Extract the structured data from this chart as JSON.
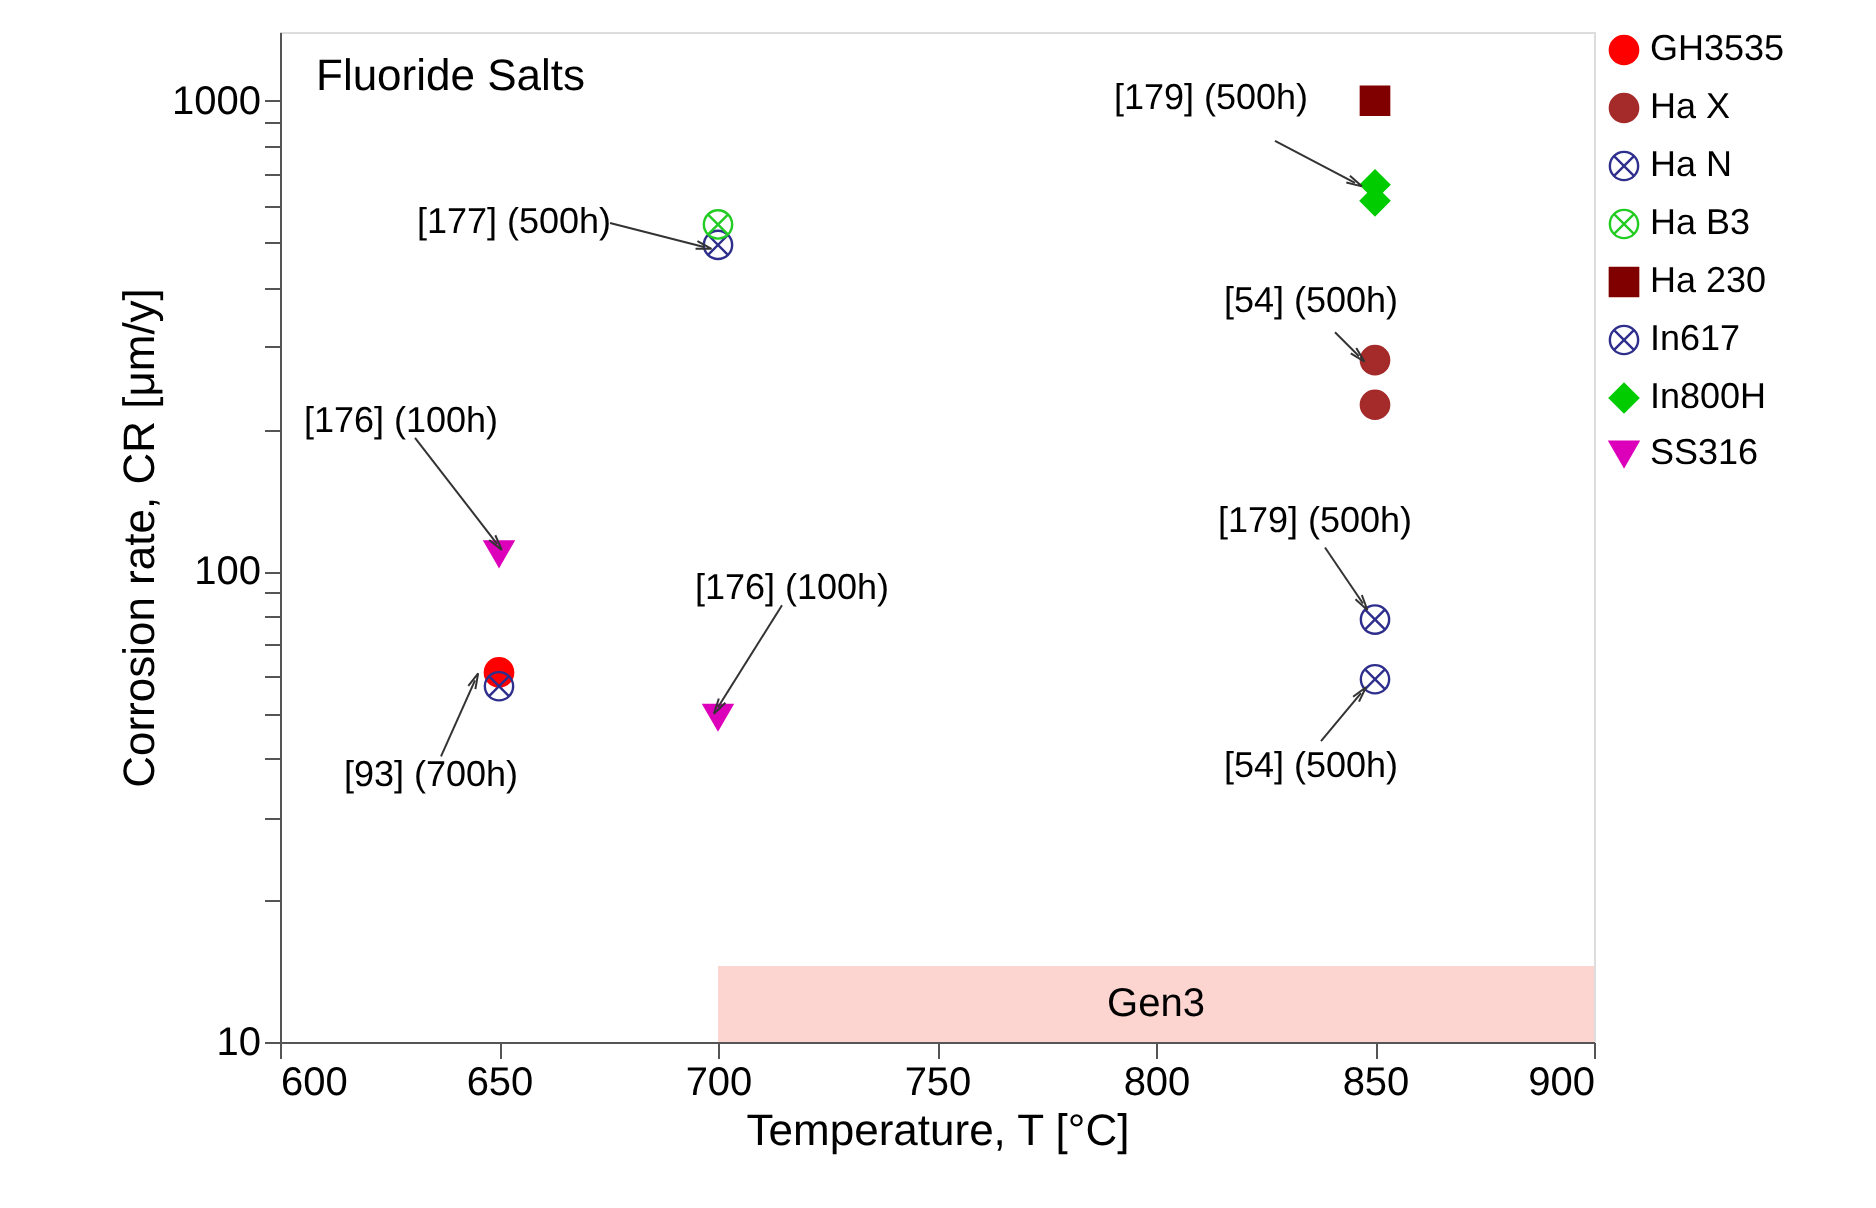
{
  "chart_data": {
    "type": "scatter",
    "xlabel": "Temperature, T [°C]",
    "ylabel": "Corrosion rate, CR [μm/y]",
    "xlim": [
      600,
      900
    ],
    "xticks": [
      600,
      650,
      700,
      750,
      800,
      850,
      900
    ],
    "ylim": [
      10,
      1400
    ],
    "log": true,
    "yticks": [
      10,
      {
        "value": 20,
        "label": null
      },
      {
        "value": 30,
        "label": null
      },
      {
        "value": 40,
        "label": null
      },
      {
        "value": 50,
        "label": null
      },
      {
        "value": 60,
        "label": null
      },
      {
        "value": 70,
        "label": null
      },
      {
        "value": 80,
        "label": null
      },
      {
        "value": 90,
        "label": null
      },
      100,
      {
        "value": 200,
        "label": null
      },
      {
        "value": 300,
        "label": null
      },
      {
        "value": 400,
        "label": null
      },
      {
        "value": 500,
        "label": null
      },
      {
        "value": 600,
        "label": null
      },
      {
        "value": 700,
        "label": null
      },
      {
        "value": 800,
        "label": null
      },
      {
        "value": 900,
        "label": null
      },
      1000
    ],
    "grid": false,
    "legend": "right",
    "series": [
      {
        "name": "GH3535",
        "color": "#ff0000",
        "marker": "circle",
        "x": [
          650
        ],
        "values": [
          61
        ]
      },
      {
        "name": "Ha X",
        "color": "#a52a2a",
        "marker": "circle",
        "x": [
          850,
          850
        ],
        "values": [
          281,
          226
        ]
      },
      {
        "name": "Ha N",
        "color": "#2e2e8c",
        "marker": "cross",
        "x": [
          650,
          700,
          850,
          850
        ],
        "values": [
          57,
          494,
          79,
          59
        ]
      },
      {
        "name": "Ha B3",
        "color": "#22cc22",
        "marker": "cross",
        "x": [
          700
        ],
        "values": [
          546
        ]
      },
      {
        "name": "Ha 230",
        "color": "#800000",
        "marker": "square",
        "x": [
          850
        ],
        "values": [
          1000
        ]
      },
      {
        "name": "In617",
        "color": "#2e2e8c",
        "marker": "cross"
      },
      {
        "name": "In800H",
        "color": "#00cc00",
        "marker": "diamond",
        "x": [
          850,
          850
        ],
        "values": [
          663,
          613
        ]
      },
      {
        "name": "SS316",
        "color": "#dd00bb",
        "marker": "triangle",
        "x": [
          650,
          700
        ],
        "values": [
          109,
          49
        ]
      }
    ],
    "bands": [
      {
        "axis": "x",
        "from": 700,
        "to": 900,
        "label": "Gen3",
        "color": "#fcd5d0"
      }
    ],
    "annotations": [
      "Fluoride Salts",
      {
        "text": "[177] (500h)",
        "x": 700,
        "y": 494
      },
      {
        "text": "[176] (100h)",
        "x": 650,
        "y": 109
      },
      {
        "text": "[93] (700h)",
        "x": 650,
        "y": 61
      },
      {
        "text": "[176] (100h)",
        "x": 700,
        "y": 49
      },
      {
        "text": "[179] (500h)",
        "x": 850,
        "y": 663
      },
      {
        "text": "[54] (500h)",
        "x": 850,
        "y": 281
      },
      {
        "text": "[179] (500h)",
        "x": 850,
        "y": 79
      },
      {
        "text": "[54] (500h)",
        "x": 850,
        "y": 59
      }
    ]
  }
}
